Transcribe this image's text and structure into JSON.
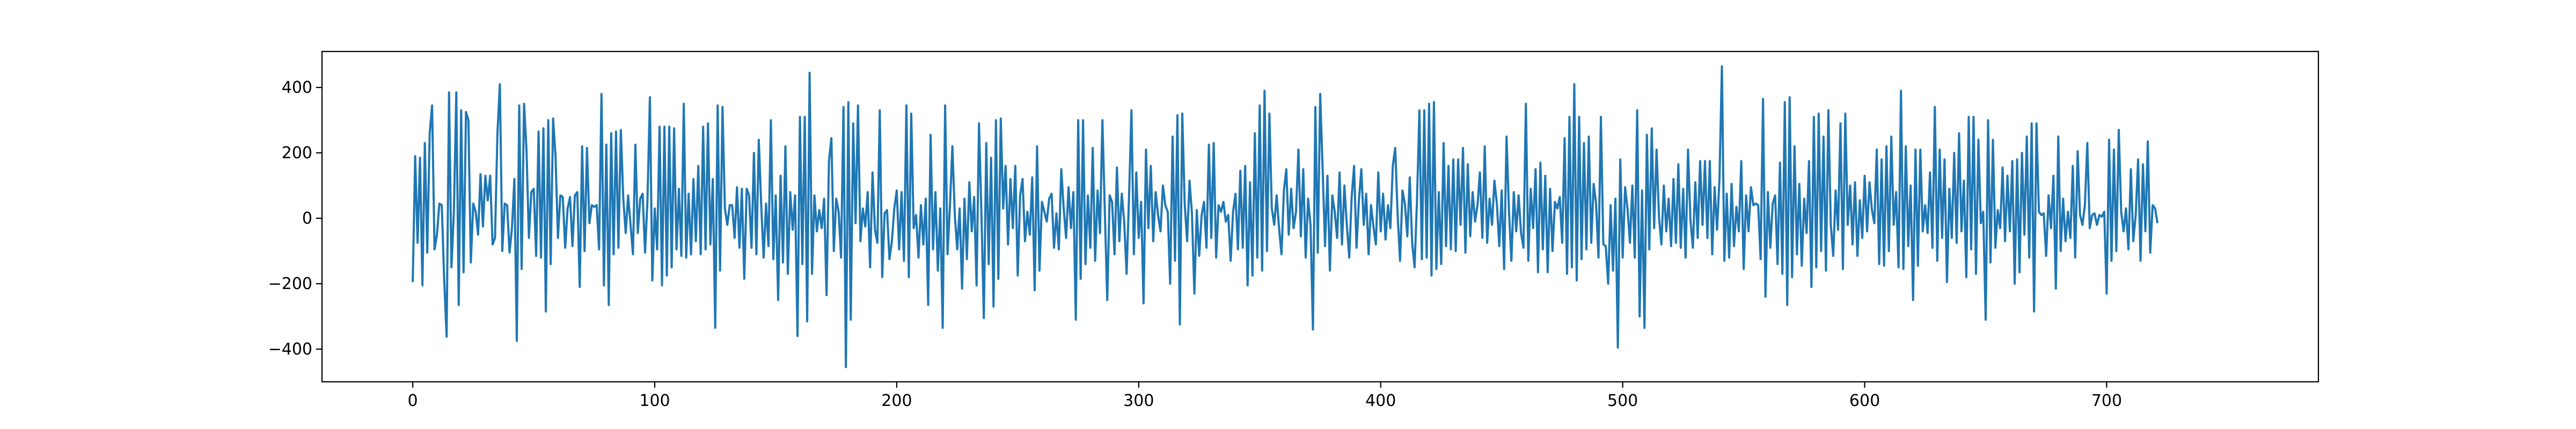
{
  "chart_data": {
    "type": "line",
    "title": "",
    "xlabel": "",
    "ylabel": "",
    "xlim": [
      -37.5,
      787.5
    ],
    "ylim": [
      -500,
      510
    ],
    "x_ticks": [
      0,
      100,
      200,
      300,
      400,
      500,
      600,
      700
    ],
    "y_ticks": [
      -400,
      -200,
      0,
      200,
      400
    ],
    "grid": false,
    "legend": "none",
    "line_color": "#1f77b4",
    "series": [
      {
        "x_start": 0,
        "x_step": 1,
        "values": [
          -195,
          190,
          -75,
          185,
          -205,
          230,
          -105,
          260,
          345,
          -95,
          -50,
          45,
          40,
          -190,
          -362,
          385,
          -150,
          20,
          385,
          -265,
          330,
          -165,
          325,
          300,
          -135,
          45,
          20,
          -50,
          135,
          -25,
          130,
          55,
          130,
          -80,
          -60,
          260,
          410,
          -100,
          45,
          40,
          -105,
          -30,
          120,
          -375,
          345,
          -155,
          350,
          210,
          -60,
          80,
          90,
          -115,
          265,
          -120,
          275,
          -285,
          300,
          -140,
          305,
          190,
          -60,
          70,
          65,
          -90,
          30,
          65,
          -85,
          70,
          80,
          -210,
          220,
          -100,
          215,
          -15,
          40,
          35,
          40,
          -95,
          380,
          -205,
          225,
          -265,
          260,
          -110,
          265,
          -90,
          270,
          60,
          -45,
          70,
          -20,
          -110,
          225,
          -45,
          60,
          75,
          -105,
          55,
          370,
          -190,
          30,
          -95,
          280,
          -205,
          280,
          -175,
          280,
          -150,
          275,
          -95,
          90,
          -115,
          350,
          -120,
          75,
          -110,
          120,
          -70,
          160,
          -110,
          280,
          -95,
          290,
          -80,
          120,
          -335,
          345,
          -160,
          340,
          30,
          -20,
          40,
          40,
          -60,
          95,
          -90,
          90,
          -185,
          90,
          70,
          -90,
          200,
          -110,
          240,
          40,
          -120,
          45,
          -85,
          300,
          -125,
          70,
          -250,
          130,
          -135,
          220,
          -170,
          80,
          -35,
          70,
          -360,
          310,
          -140,
          310,
          -315,
          445,
          -170,
          70,
          -40,
          25,
          -30,
          60,
          -235,
          175,
          245,
          -100,
          60,
          20,
          -120,
          340,
          -455,
          355,
          -310,
          290,
          -15,
          345,
          -70,
          30,
          -25,
          80,
          -150,
          140,
          -35,
          -75,
          330,
          -180,
          15,
          25,
          -125,
          -70,
          30,
          85,
          -95,
          80,
          -130,
          345,
          -180,
          320,
          -30,
          10,
          -120,
          40,
          -80,
          60,
          -265,
          255,
          -95,
          80,
          -160,
          30,
          -335,
          345,
          -110,
          40,
          220,
          10,
          -95,
          30,
          -215,
          60,
          -125,
          110,
          -40,
          65,
          -205,
          290,
          15,
          -305,
          230,
          -140,
          185,
          -270,
          300,
          -185,
          305,
          30,
          160,
          -80,
          120,
          -30,
          160,
          -175,
          70,
          120,
          -70,
          20,
          -50,
          125,
          -220,
          220,
          -160,
          50,
          20,
          -10,
          60,
          75,
          -90,
          15,
          -95,
          150,
          30,
          -60,
          95,
          -30,
          80,
          -310,
          300,
          -185,
          300,
          -140,
          70,
          -90,
          215,
          -130,
          85,
          -45,
          300,
          20,
          -250,
          70,
          50,
          -110,
          155,
          -70,
          75,
          -10,
          -170,
          65,
          330,
          -110,
          140,
          -60,
          50,
          -260,
          210,
          -30,
          160,
          -70,
          80,
          10,
          -40,
          100,
          40,
          20,
          -200,
          250,
          -130,
          315,
          -325,
          320,
          45,
          -70,
          115,
          15,
          -230,
          25,
          -115,
          10,
          50,
          -90,
          225,
          -60,
          230,
          -120,
          40,
          20,
          50,
          -10,
          10,
          -130,
          20,
          75,
          -95,
          145,
          -90,
          160,
          -205,
          110,
          -175,
          260,
          -120,
          345,
          -160,
          390,
          -100,
          320,
          30,
          -20,
          70,
          -30,
          -110,
          85,
          150,
          -50,
          90,
          -30,
          20,
          210,
          -55,
          150,
          -120,
          60,
          -20,
          -340,
          340,
          -105,
          380,
          150,
          -85,
          130,
          -160,
          70,
          20,
          -60,
          140,
          -80,
          100,
          -20,
          -120,
          65,
          160,
          -90,
          55,
          150,
          -20,
          75,
          -110,
          40,
          -25,
          -80,
          140,
          -40,
          75,
          -65,
          40,
          -30,
          160,
          215,
          10,
          -130,
          85,
          45,
          -55,
          125,
          -75,
          -150,
          55,
          330,
          -125,
          330,
          -120,
          350,
          -175,
          355,
          -155,
          80,
          -140,
          230,
          -85,
          160,
          -95,
          180,
          -100,
          180,
          -20,
          215,
          -105,
          165,
          -55,
          80,
          -10,
          40,
          140,
          -60,
          220,
          -75,
          60,
          -20,
          115,
          45,
          -85,
          85,
          -155,
          250,
          25,
          -130,
          80,
          -40,
          70,
          -45,
          -90,
          350,
          -130,
          90,
          -30,
          150,
          -165,
          170,
          -95,
          130,
          -165,
          90,
          -100,
          50,
          30,
          65,
          -75,
          245,
          -170,
          310,
          -150,
          410,
          -190,
          310,
          -125,
          230,
          -95,
          250,
          -75,
          105,
          45,
          -120,
          310,
          -80,
          -85,
          -200,
          40,
          -160,
          60,
          -395,
          180,
          -120,
          95,
          30,
          -75,
          100,
          -120,
          330,
          -300,
          85,
          -335,
          255,
          -95,
          275,
          -30,
          210,
          5,
          -80,
          100,
          -40,
          60,
          -85,
          120,
          -75,
          165,
          -90,
          90,
          -120,
          210,
          -5,
          -90,
          110,
          -60,
          175,
          -20,
          175,
          -60,
          175,
          -110,
          95,
          -35,
          120,
          465,
          -130,
          75,
          -120,
          105,
          -85,
          35,
          -40,
          175,
          -155,
          70,
          -40,
          95,
          40,
          45,
          40,
          -125,
          365,
          -240,
          80,
          -90,
          45,
          70,
          -140,
          170,
          -170,
          355,
          -265,
          370,
          -180,
          220,
          -110,
          105,
          -145,
          60,
          -45,
          175,
          -210,
          310,
          -150,
          320,
          -100,
          250,
          -160,
          330,
          -20,
          -115,
          85,
          -35,
          290,
          -155,
          320,
          -20,
          100,
          -80,
          110,
          -115,
          55,
          -60,
          130,
          -40,
          110,
          25,
          -15,
          210,
          -140,
          180,
          -145,
          220,
          -100,
          250,
          -20,
          80,
          -150,
          390,
          -155,
          220,
          -85,
          100,
          -250,
          210,
          -145,
          210,
          -40,
          40,
          -45,
          140,
          -90,
          340,
          -130,
          210,
          -60,
          180,
          -195,
          90,
          -60,
          200,
          -75,
          260,
          -40,
          115,
          -180,
          310,
          -95,
          310,
          -170,
          240,
          -15,
          20,
          -310,
          300,
          -135,
          240,
          -90,
          25,
          -30,
          155,
          -70,
          130,
          -40,
          175,
          -200,
          180,
          -165,
          200,
          -50,
          250,
          -120,
          290,
          -285,
          290,
          20,
          10,
          15,
          -115,
          70,
          -30,
          130,
          -215,
          250,
          -100,
          60,
          -70,
          20,
          -60,
          160,
          -120,
          205,
          10,
          -20,
          40,
          230,
          -30,
          10,
          15,
          -20,
          10,
          5,
          20,
          -230,
          240,
          -130,
          210,
          -100,
          270,
          20,
          -40,
          30,
          -95,
          150,
          -70,
          10,
          180,
          -130,
          165,
          -40,
          235,
          -105,
          40,
          30,
          -15
        ]
      }
    ]
  }
}
